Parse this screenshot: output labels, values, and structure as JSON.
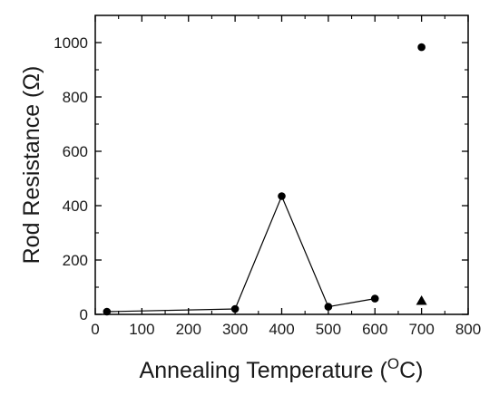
{
  "chart_data": {
    "type": "scatter",
    "xlabel": "Annealing Temperature (",
    "xlabel_sup": "O",
    "xlabel_end": "C)",
    "ylabel": "Rod Resistance (Ω)",
    "xlim": [
      0,
      800
    ],
    "ylim": [
      0,
      1100
    ],
    "xticks": [
      0,
      100,
      200,
      300,
      400,
      500,
      600,
      700,
      800
    ],
    "yticks": [
      0,
      200,
      400,
      600,
      800,
      1000
    ],
    "grid": false,
    "series": [
      {
        "marker": "circle",
        "connected": true,
        "points": [
          {
            "x": 25,
            "y": 10
          },
          {
            "x": 300,
            "y": 20
          },
          {
            "x": 400,
            "y": 435
          },
          {
            "x": 500,
            "y": 28
          },
          {
            "x": 600,
            "y": 58
          }
        ]
      },
      {
        "marker": "circle",
        "connected": false,
        "points": [
          {
            "x": 700,
            "y": 983
          }
        ]
      },
      {
        "marker": "triangle",
        "connected": false,
        "points": [
          {
            "x": 700,
            "y": 50
          }
        ]
      }
    ],
    "colors": {
      "marks": "#000000",
      "text": "#1a1a1a"
    }
  }
}
